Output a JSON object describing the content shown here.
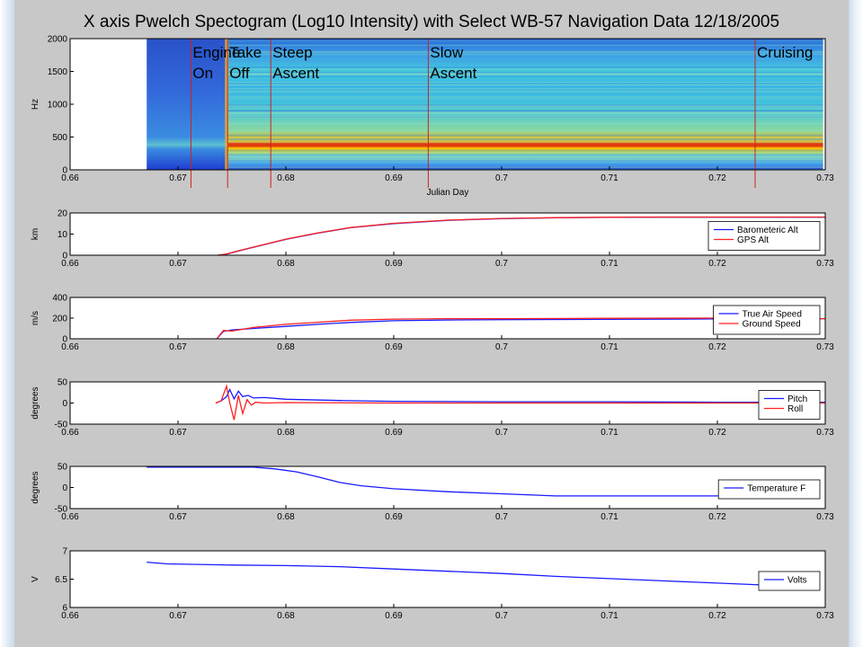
{
  "colors": {
    "figure_bg": "#c8c8c8",
    "axes_bg": "#ffffff",
    "blue": "#1a1aff",
    "red": "#ff2020",
    "event_line": "#cc2222",
    "spectrum_low": "#1e3cd0",
    "spectrum_mid": "#3fd0d8",
    "spectrum_high": "#ffd000",
    "spectrum_peak": "#e03a10"
  },
  "chart_data": [
    {
      "type": "heatmap",
      "title": "X axis Pwelch Spectogram (Log10 Intensity) with Select WB-57 Navigation Data 12/18/2005",
      "xlabel": "Julian Day",
      "ylabel": "Hz",
      "xlim": [
        0.66,
        0.73
      ],
      "ylim": [
        0,
        2000
      ],
      "xticks": [
        "0.66",
        "0.67",
        "0.68",
        "0.69",
        "0.7",
        "0.71",
        "0.72",
        "0.73"
      ],
      "yticks": [
        "0",
        "500",
        "1000",
        "1500",
        "2000"
      ],
      "data_start_x": 0.6671,
      "data_end_x": 0.7298,
      "dominant_band_hz": 380,
      "events": [
        {
          "x": 0.6712,
          "label": [
            "Engine",
            "On"
          ]
        },
        {
          "x": 0.6746,
          "label": [
            "Take",
            "Off"
          ]
        },
        {
          "x": 0.6786,
          "label": [
            "Steep",
            "Ascent"
          ]
        },
        {
          "x": 0.6932,
          "label": [
            "Slow",
            "Ascent"
          ]
        },
        {
          "x": 0.7235,
          "label": [
            "Cruising"
          ]
        }
      ]
    },
    {
      "type": "line",
      "ylabel": "km",
      "xlim": [
        0.66,
        0.73
      ],
      "ylim": [
        0,
        20
      ],
      "xticks": [
        "0.66",
        "0.67",
        "0.68",
        "0.69",
        "0.7",
        "0.71",
        "0.72",
        "0.73"
      ],
      "yticks": [
        "0",
        "10",
        "20"
      ],
      "series": [
        {
          "name": "Barometeric Alt",
          "color": "#1a1aff",
          "x": [
            0.6737,
            0.6745,
            0.676,
            0.678,
            0.68,
            0.683,
            0.686,
            0.69,
            0.695,
            0.7,
            0.705,
            0.71,
            0.715,
            0.72,
            0.725,
            0.73
          ],
          "y": [
            0,
            0.5,
            2.5,
            5.0,
            7.5,
            10.5,
            13.0,
            15.0,
            16.5,
            17.3,
            17.7,
            17.9,
            18.0,
            18.0,
            18.0,
            18.0
          ]
        },
        {
          "name": "GPS Alt",
          "color": "#ff2020",
          "x": [
            0.6737,
            0.6745,
            0.676,
            0.678,
            0.68,
            0.683,
            0.686,
            0.69,
            0.695,
            0.7,
            0.705,
            0.71,
            0.715,
            0.72,
            0.725,
            0.73
          ],
          "y": [
            0,
            0.6,
            2.6,
            5.1,
            7.6,
            10.6,
            13.1,
            15.1,
            16.6,
            17.4,
            17.8,
            18.0,
            18.1,
            18.1,
            18.1,
            18.1
          ]
        }
      ],
      "legend": "right"
    },
    {
      "type": "line",
      "ylabel": "m/s",
      "xlim": [
        0.66,
        0.73
      ],
      "ylim": [
        0,
        400
      ],
      "xticks": [
        "0.66",
        "0.67",
        "0.68",
        "0.69",
        "0.7",
        "0.71",
        "0.72",
        "0.73"
      ],
      "yticks": [
        "0",
        "200",
        "400"
      ],
      "series": [
        {
          "name": "True Air Speed",
          "color": "#1a1aff",
          "x": [
            0.6736,
            0.6742,
            0.675,
            0.677,
            0.68,
            0.683,
            0.686,
            0.69,
            0.695,
            0.7,
            0.71,
            0.72,
            0.73
          ],
          "y": [
            0,
            70,
            85,
            100,
            120,
            140,
            158,
            175,
            182,
            185,
            188,
            192,
            195
          ]
        },
        {
          "name": "Ground Speed",
          "color": "#ff2020",
          "x": [
            0.6736,
            0.6742,
            0.675,
            0.677,
            0.68,
            0.683,
            0.686,
            0.69,
            0.695,
            0.7,
            0.71,
            0.72,
            0.73
          ],
          "y": [
            0,
            80,
            75,
            110,
            140,
            160,
            180,
            190,
            195,
            195,
            198,
            200,
            195
          ]
        }
      ],
      "legend": "right"
    },
    {
      "type": "line",
      "ylabel": "degrees",
      "xlim": [
        0.66,
        0.73
      ],
      "ylim": [
        -50,
        50
      ],
      "xticks": [
        "0.66",
        "0.67",
        "0.68",
        "0.69",
        "0.7",
        "0.71",
        "0.72",
        "0.73"
      ],
      "yticks": [
        "-50",
        "0",
        "50"
      ],
      "series": [
        {
          "name": "Pitch",
          "color": "#1a1aff",
          "x": [
            0.6735,
            0.674,
            0.6745,
            0.6748,
            0.6752,
            0.6756,
            0.676,
            0.6765,
            0.677,
            0.678,
            0.68,
            0.685,
            0.69,
            0.7,
            0.71,
            0.72,
            0.73
          ],
          "y": [
            0,
            5,
            15,
            32,
            10,
            28,
            15,
            18,
            12,
            13,
            9,
            6,
            4,
            3,
            3,
            2,
            2
          ]
        },
        {
          "name": "Roll",
          "color": "#ff2020",
          "x": [
            0.6735,
            0.674,
            0.6745,
            0.6748,
            0.6752,
            0.6756,
            0.676,
            0.6764,
            0.6768,
            0.6772,
            0.678,
            0.68,
            0.69,
            0.7,
            0.71,
            0.72,
            0.73
          ],
          "y": [
            0,
            5,
            40,
            0,
            -40,
            18,
            -25,
            8,
            -5,
            2,
            0,
            1,
            0,
            0,
            0,
            0,
            0
          ]
        }
      ],
      "legend": "right"
    },
    {
      "type": "line",
      "ylabel": "degrees",
      "xlim": [
        0.66,
        0.73
      ],
      "ylim": [
        -50,
        50
      ],
      "xticks": [
        "0.66",
        "0.67",
        "0.68",
        "0.69",
        "0.7",
        "0.71",
        "0.72",
        "0.73"
      ],
      "yticks": [
        "-50",
        "0",
        "50"
      ],
      "series": [
        {
          "name": "Temperature F",
          "color": "#1a1aff",
          "x": [
            0.6671,
            0.67,
            0.675,
            0.677,
            0.679,
            0.681,
            0.683,
            0.685,
            0.687,
            0.69,
            0.695,
            0.7,
            0.705,
            0.71,
            0.72,
            0.7288
          ],
          "y": [
            48,
            48,
            48,
            48,
            44,
            37,
            25,
            12,
            4,
            -3,
            -10,
            -15,
            -20,
            -20,
            -20,
            -20
          ]
        }
      ],
      "legend": "right"
    },
    {
      "type": "line",
      "ylabel": "V",
      "xlim": [
        0.66,
        0.73
      ],
      "ylim": [
        6,
        7
      ],
      "xticks": [
        "0.66",
        "0.67",
        "0.68",
        "0.69",
        "0.7",
        "0.71",
        "0.72",
        "0.73"
      ],
      "yticks": [
        "6",
        "6.5",
        "7"
      ],
      "series": [
        {
          "name": "Volts",
          "color": "#1a1aff",
          "x": [
            0.6671,
            0.669,
            0.675,
            0.68,
            0.685,
            0.69,
            0.695,
            0.7,
            0.705,
            0.71,
            0.715,
            0.72,
            0.725,
            0.7288
          ],
          "y": [
            6.8,
            6.77,
            6.75,
            6.74,
            6.72,
            6.68,
            6.64,
            6.6,
            6.55,
            6.51,
            6.47,
            6.43,
            6.39,
            6.34
          ]
        }
      ],
      "legend": "right"
    }
  ]
}
